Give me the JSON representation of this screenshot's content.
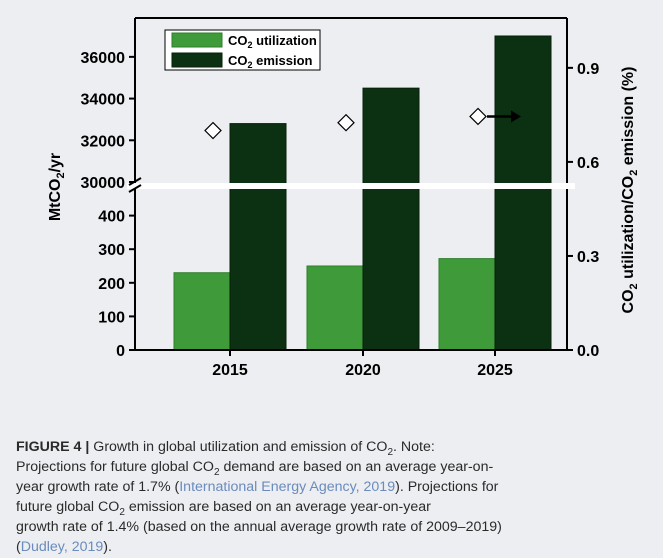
{
  "figure": {
    "background": "#eceef1",
    "caption": {
      "label": "FIGURE 4 |",
      "lines": [
        [
          {
            "t": " Growth in global utilization and emission of CO"
          },
          {
            "t": "2",
            "sub": true
          },
          {
            "t": ". Note:"
          }
        ],
        [
          {
            "t": "Projections for future global CO"
          },
          {
            "t": "2",
            "sub": true
          },
          {
            "t": " demand are based on an average year-on-"
          }
        ],
        [
          {
            "t": "year growth rate of 1.7% ("
          },
          {
            "t": "International Energy Agency, 2019",
            "ref": true
          },
          {
            "t": "). Projections for"
          }
        ],
        [
          {
            "t": "future global CO"
          },
          {
            "t": "2",
            "sub": true
          },
          {
            "t": " emission are based on an average year-on-year"
          }
        ],
        [
          {
            "t": "growth rate of 1.4% (based on the annual average growth rate of 2009–2019)"
          }
        ],
        [
          {
            "t": "("
          },
          {
            "t": "Dudley, 2019",
            "ref": true
          },
          {
            "t": ")."
          }
        ]
      ]
    }
  },
  "chart_data": {
    "type": "bar",
    "categories": [
      "2015",
      "2020",
      "2025"
    ],
    "series": [
      {
        "name": "CO2 utilization",
        "legend_main": "CO",
        "legend_sub": "2",
        "legend_rest": " utilization",
        "values": [
          230,
          250,
          272
        ],
        "color": "#3f9b3a",
        "edge": "#2f7f2b"
      },
      {
        "name": "CO2 emission",
        "legend_main": "CO",
        "legend_sub": "2",
        "legend_rest": " emission",
        "values": [
          32800,
          34500,
          37000
        ],
        "color": "#0c3012",
        "edge": "#06200a"
      }
    ],
    "ratio_markers": {
      "values": [
        0.7,
        0.725,
        0.745
      ],
      "projection_arrow": true
    },
    "y_left": {
      "title": "MtCO2/yr",
      "title_main": "MtCO",
      "title_sub": "2",
      "title_rest": "/yr",
      "broken_axis": true,
      "lower_range": [
        0,
        500
      ],
      "upper_range": [
        30000,
        37000
      ],
      "lower_ticks": [
        "0",
        "100",
        "200",
        "300",
        "400"
      ],
      "lower_tick_values": [
        0,
        100,
        200,
        300,
        400
      ],
      "upper_ticks": [
        "30000",
        "32000",
        "34000",
        "36000"
      ],
      "upper_tick_values": [
        30000,
        32000,
        34000,
        36000
      ]
    },
    "y_right": {
      "title": "CO2 utilization/CO2 emission (%)",
      "parts": [
        {
          "t": "CO"
        },
        {
          "t": "2",
          "sub": true
        },
        {
          "t": " utilization/CO"
        },
        {
          "t": "2",
          "sub": true
        },
        {
          "t": " emission (%)"
        }
      ],
      "range": [
        0.0,
        1.0
      ],
      "ticks": [
        "0.0",
        "0.3",
        "0.6",
        "0.9"
      ],
      "tick_values": [
        0.0,
        0.3,
        0.6,
        0.9
      ]
    },
    "legend_position": "top-left",
    "grid": false
  }
}
